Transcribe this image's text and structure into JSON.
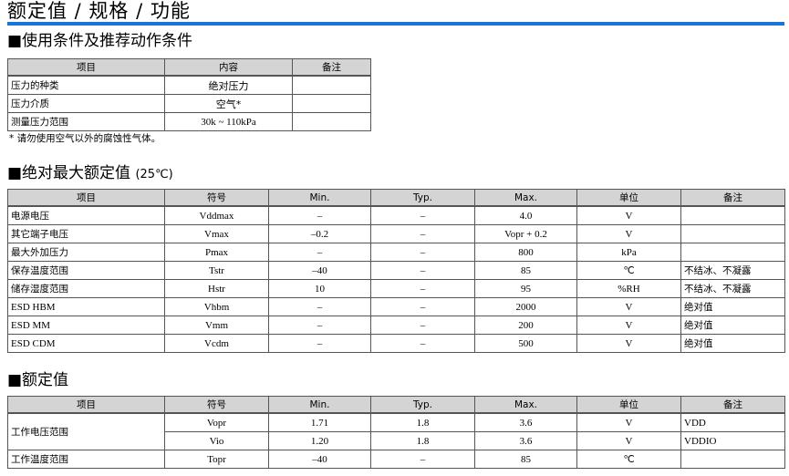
{
  "title": "额定值 / 规格 / 功能",
  "accent": "#1a73d9",
  "sec1": {
    "heading": "■使用条件及推荐动作条件",
    "headers": [
      "项目",
      "内容",
      "备注"
    ],
    "rows": [
      [
        "压力的种类",
        "绝对压力",
        ""
      ],
      [
        "压力介质",
        "空气*",
        ""
      ],
      [
        "测量压力范围",
        "30k ~ 110kPa",
        ""
      ]
    ],
    "note": "*  请勿使用空气以外的腐蚀性气体。"
  },
  "sec2": {
    "heading": "■绝对最大额定值",
    "heading_suffix": "(25℃)",
    "headers": [
      "项目",
      "符号",
      "Min.",
      "Typ.",
      "Max.",
      "单位",
      "备注"
    ],
    "rows": [
      [
        "电源电压",
        "Vddmax",
        "–",
        "–",
        "4.0",
        "V",
        ""
      ],
      [
        "其它端子电压",
        "Vmax",
        "–0.2",
        "–",
        "Vopr + 0.2",
        "V",
        ""
      ],
      [
        "最大外加压力",
        "Pmax",
        "–",
        "–",
        "800",
        "kPa",
        ""
      ],
      [
        "保存温度范围",
        "Tstr",
        "–40",
        "–",
        "85",
        "℃",
        "不结冰、不凝露"
      ],
      [
        "储存湿度范围",
        "Hstr",
        "10",
        "–",
        "95",
        "%RH",
        "不结冰、不凝露"
      ],
      [
        "ESD HBM",
        "Vhbm",
        "–",
        "–",
        "2000",
        "V",
        "绝对值"
      ],
      [
        "ESD MM",
        "Vmm",
        "–",
        "–",
        "200",
        "V",
        "绝对值"
      ],
      [
        "ESD CDM",
        "Vcdm",
        "–",
        "–",
        "500",
        "V",
        "绝对值"
      ]
    ]
  },
  "sec3": {
    "heading": "■额定值",
    "headers": [
      "项目",
      "符号",
      "Min.",
      "Typ.",
      "Max.",
      "单位",
      "备注"
    ],
    "group_label": "工作电压范围",
    "group_rows": [
      [
        "Vopr",
        "1.71",
        "1.8",
        "3.6",
        "V",
        "VDD"
      ],
      [
        "Vio",
        "1.20",
        "1.8",
        "3.6",
        "V",
        "VDDIO"
      ]
    ],
    "last_row": [
      "工作温度范围",
      "Topr",
      "–40",
      "–",
      "85",
      "℃",
      ""
    ]
  }
}
